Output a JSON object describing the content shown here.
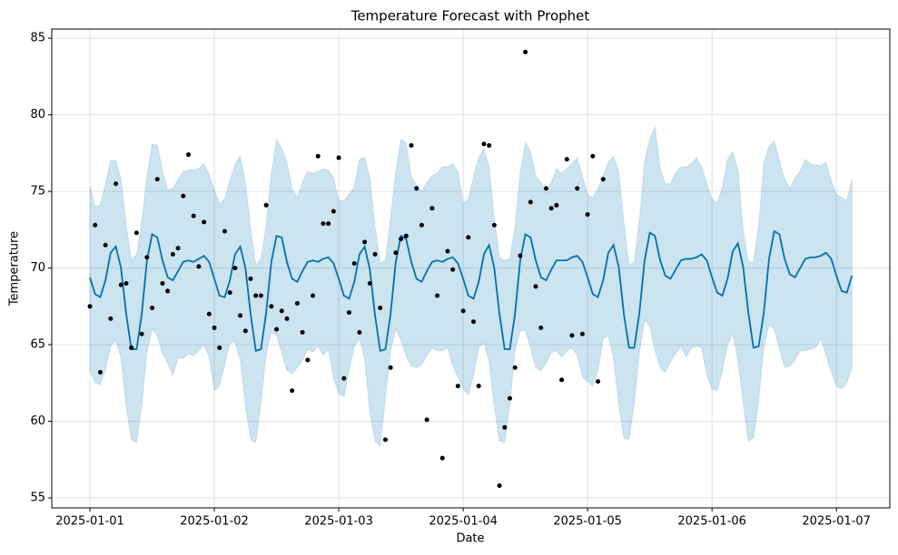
{
  "chart_data": {
    "type": "forecast",
    "title": "Temperature Forecast with Prophet",
    "x_label": "Date",
    "y_label": "Temperature",
    "x": [
      0,
      1,
      2,
      3,
      4,
      5,
      6,
      7,
      8,
      9,
      10,
      11,
      12,
      13,
      14,
      15,
      16,
      17,
      18,
      19,
      20,
      21,
      22,
      23,
      24,
      25,
      26,
      27,
      28,
      29,
      30,
      31,
      32,
      33,
      34,
      35,
      36,
      37,
      38,
      39,
      40,
      41,
      42,
      43,
      44,
      45,
      46,
      47,
      48,
      49,
      50,
      51,
      52,
      53,
      54,
      55,
      56,
      57,
      58,
      59,
      60,
      61,
      62,
      63,
      64,
      65,
      66,
      67,
      68,
      69,
      70,
      71,
      72,
      73,
      74,
      75,
      76,
      77,
      78,
      79,
      80,
      81,
      82,
      83,
      84,
      85,
      86,
      87,
      88,
      89,
      90,
      91,
      92,
      93,
      94,
      95,
      96,
      97,
      98,
      99,
      100,
      101,
      102,
      103,
      104,
      105,
      106,
      107,
      108,
      109,
      110,
      111,
      112,
      113,
      114,
      115,
      116,
      117,
      118,
      119,
      120,
      121,
      122,
      123,
      124,
      125,
      126,
      127,
      128,
      129,
      130,
      131,
      132,
      133,
      134,
      135,
      136,
      137,
      138,
      139,
      140,
      141,
      142,
      143,
      144,
      145,
      146,
      147
    ],
    "actual": [
      67.5,
      72.8,
      63.2,
      71.5,
      66.7,
      75.5,
      68.9,
      69.0,
      64.8,
      72.3,
      65.7,
      70.7,
      67.4,
      75.8,
      69.0,
      68.5,
      70.9,
      71.3,
      74.7,
      77.4,
      73.4,
      70.1,
      73.0,
      67.0,
      66.1,
      64.8,
      72.4,
      68.4,
      70.0,
      66.9,
      65.9,
      69.3,
      68.2,
      68.2,
      74.1,
      67.5,
      66.0,
      67.2,
      66.7,
      62.0,
      67.7,
      65.8,
      64.0,
      68.2,
      77.3,
      72.9,
      72.9,
      73.7,
      77.2,
      62.8,
      67.1,
      70.3,
      65.8,
      71.7,
      69.0,
      70.9,
      67.4,
      58.8,
      63.5,
      71.0,
      71.9,
      72.1,
      78.0,
      75.2,
      72.8,
      60.1,
      73.9,
      68.2,
      57.6,
      71.1,
      69.9,
      62.3,
      67.2,
      72.0,
      66.5,
      62.3,
      78.1,
      78.0,
      72.8,
      55.8,
      59.6,
      61.5,
      63.5,
      70.8,
      84.1,
      74.3,
      68.8,
      66.1,
      75.2,
      73.9,
      74.1,
      62.7,
      77.1,
      65.6,
      75.2,
      65.7,
      73.5,
      77.3,
      62.6,
      75.8,
      null,
      null,
      null,
      null,
      null,
      null,
      null,
      null,
      null,
      null,
      null,
      null,
      null,
      null,
      null,
      null,
      null,
      null,
      null,
      null,
      null,
      null,
      null,
      null,
      null,
      null,
      null,
      null,
      null,
      null,
      null,
      null,
      null,
      null,
      null,
      null,
      null,
      null,
      null,
      null,
      null,
      null,
      null,
      null,
      null,
      null,
      null,
      null
    ],
    "yhat": [
      69.4,
      68.3,
      68.1,
      69.2,
      71.0,
      71.4,
      70.0,
      67.0,
      64.7,
      64.7,
      67.0,
      70.5,
      72.2,
      72.0,
      70.5,
      69.4,
      69.2,
      69.8,
      70.4,
      70.5,
      70.4,
      70.6,
      70.8,
      70.4,
      69.3,
      68.2,
      68.1,
      69.2,
      70.9,
      71.4,
      70.0,
      67.0,
      64.6,
      64.7,
      67.1,
      70.4,
      72.1,
      72.0,
      70.4,
      69.3,
      69.1,
      69.8,
      70.4,
      70.5,
      70.4,
      70.6,
      70.7,
      70.3,
      69.3,
      68.2,
      68.0,
      69.1,
      70.9,
      71.4,
      69.9,
      66.9,
      64.6,
      64.7,
      67.0,
      70.4,
      72.1,
      71.9,
      70.4,
      69.3,
      69.1,
      69.8,
      70.4,
      70.5,
      70.4,
      70.6,
      70.7,
      70.3,
      69.3,
      68.2,
      68.0,
      69.1,
      70.9,
      71.5,
      70.0,
      67.0,
      64.7,
      64.7,
      67.0,
      70.5,
      72.2,
      72.0,
      70.5,
      69.4,
      69.2,
      69.9,
      70.5,
      70.5,
      70.5,
      70.7,
      70.8,
      70.4,
      69.4,
      68.3,
      68.1,
      69.2,
      71.0,
      71.5,
      70.1,
      67.0,
      64.8,
      64.8,
      67.1,
      70.5,
      72.3,
      72.1,
      70.5,
      69.5,
      69.3,
      69.9,
      70.5,
      70.6,
      70.6,
      70.7,
      70.9,
      70.5,
      69.4,
      68.4,
      68.2,
      69.3,
      71.1,
      71.6,
      70.1,
      67.1,
      64.8,
      64.9,
      67.1,
      70.6,
      72.4,
      72.2,
      70.6,
      69.6,
      69.4,
      70.0,
      70.6,
      70.7,
      70.7,
      70.8,
      71.0,
      70.6,
      69.5,
      68.5,
      68.4,
      69.5
    ],
    "yhat_upper": [
      75.4,
      74.0,
      74.1,
      75.5,
      77.0,
      77.0,
      75.8,
      72.8,
      70.5,
      70.9,
      73.0,
      76.0,
      78.1,
      78.0,
      76.4,
      75.1,
      75.2,
      75.8,
      76.3,
      76.4,
      76.4,
      76.5,
      76.8,
      76.1,
      75.1,
      74.2,
      74.5,
      75.7,
      76.8,
      77.3,
      75.6,
      72.6,
      70.2,
      70.6,
      72.8,
      76.2,
      78.4,
      77.8,
      76.9,
      75.2,
      74.6,
      75.6,
      76.3,
      76.2,
      76.3,
      76.5,
      76.4,
      75.9,
      74.4,
      74.4,
      74.8,
      75.3,
      77.1,
      77.2,
      75.9,
      72.7,
      70.3,
      70.5,
      73.3,
      76.3,
      78.4,
      78.2,
      76.0,
      75.4,
      75.0,
      75.6,
      76.0,
      76.2,
      76.6,
      76.6,
      76.8,
      76.3,
      74.2,
      74.5,
      76.0,
      77.2,
      77.8,
      76.6,
      73.2,
      70.7,
      70.5,
      70.6,
      72.7,
      76.2,
      78.2,
      77.6,
      76.0,
      75.6,
      74.9,
      75.6,
      76.5,
      76.2,
      76.5,
      76.8,
      77.2,
      76.0,
      74.8,
      74.6,
      75.2,
      76.0,
      76.9,
      77.3,
      76.3,
      73.0,
      70.2,
      70.4,
      73.1,
      77.0,
      78.4,
      79.2,
      76.5,
      75.5,
      75.5,
      76.2,
      76.6,
      76.6,
      76.8,
      77.2,
      76.6,
      75.5,
      74.5,
      74.2,
      75.3,
      77.1,
      77.6,
      76.4,
      72.5,
      70.4,
      70.4,
      72.8,
      76.9,
      77.9,
      78.3,
      77.0,
      75.8,
      75.2,
      75.9,
      76.3,
      77.1,
      76.8,
      76.7,
      76.7,
      76.9,
      75.7,
      74.8,
      74.6,
      74.4,
      75.8
    ],
    "yhat_lower": [
      63.3,
      62.5,
      62.4,
      63.4,
      64.9,
      65.3,
      64.1,
      61.0,
      58.8,
      58.6,
      61.0,
      64.5,
      66.0,
      65.6,
      64.4,
      63.8,
      63.0,
      64.1,
      64.1,
      64.4,
      64.3,
      64.6,
      65.0,
      64.2,
      62.0,
      62.3,
      63.7,
      65.1,
      65.2,
      64.0,
      61.0,
      58.8,
      58.6,
      61.2,
      64.4,
      65.8,
      65.6,
      64.5,
      63.3,
      63.1,
      63.5,
      64.0,
      64.7,
      64.5,
      64.9,
      64.3,
      64.7,
      62.8,
      61.8,
      61.6,
      63.3,
      64.9,
      65.4,
      64.1,
      60.6,
      58.7,
      58.4,
      61.5,
      64.6,
      66.0,
      65.3,
      64.3,
      63.6,
      63.5,
      63.7,
      64.3,
      64.8,
      64.6,
      64.6,
      64.8,
      63.6,
      62.9,
      62.1,
      61.7,
      63.0,
      64.8,
      65.1,
      63.9,
      61.0,
      58.7,
      58.6,
      61.1,
      64.6,
      65.9,
      65.9,
      64.8,
      63.5,
      63.3,
      63.8,
      64.5,
      64.6,
      64.2,
      64.6,
      64.8,
      64.3,
      62.9,
      62.6,
      62.3,
      63.3,
      65.4,
      65.6,
      64.1,
      61.1,
      58.9,
      58.8,
      61.2,
      64.5,
      66.6,
      66.2,
      64.6,
      63.5,
      63.2,
      63.9,
      64.4,
      64.9,
      64.2,
      64.8,
      64.9,
      64.8,
      63.0,
      62.1,
      62.0,
      63.3,
      65.0,
      65.7,
      64.0,
      61.2,
      58.7,
      58.9,
      61.3,
      64.9,
      66.3,
      66.0,
      64.7,
      63.5,
      63.6,
      64.0,
      64.6,
      64.6,
      64.7,
      64.8,
      65.4,
      64.3,
      63.2,
      62.3,
      62.1,
      62.5,
      63.5
    ],
    "point_color": "#000000",
    "line_color": "#0072B2",
    "band_color": "#0072B2",
    "xlim": [
      -7.36,
      154.3
    ],
    "ylim": [
      54.35,
      85.6
    ],
    "xticks": [
      {
        "value": 0,
        "label": "2025-01-01"
      },
      {
        "value": 24,
        "label": "2025-01-02"
      },
      {
        "value": 48,
        "label": "2025-01-03"
      },
      {
        "value": 72,
        "label": "2025-01-04"
      },
      {
        "value": 96,
        "label": "2025-01-05"
      },
      {
        "value": 120,
        "label": "2025-01-06"
      },
      {
        "value": 144,
        "label": "2025-01-07"
      }
    ],
    "yticks": [
      55,
      60,
      65,
      70,
      75,
      80,
      85
    ],
    "grid": true
  }
}
